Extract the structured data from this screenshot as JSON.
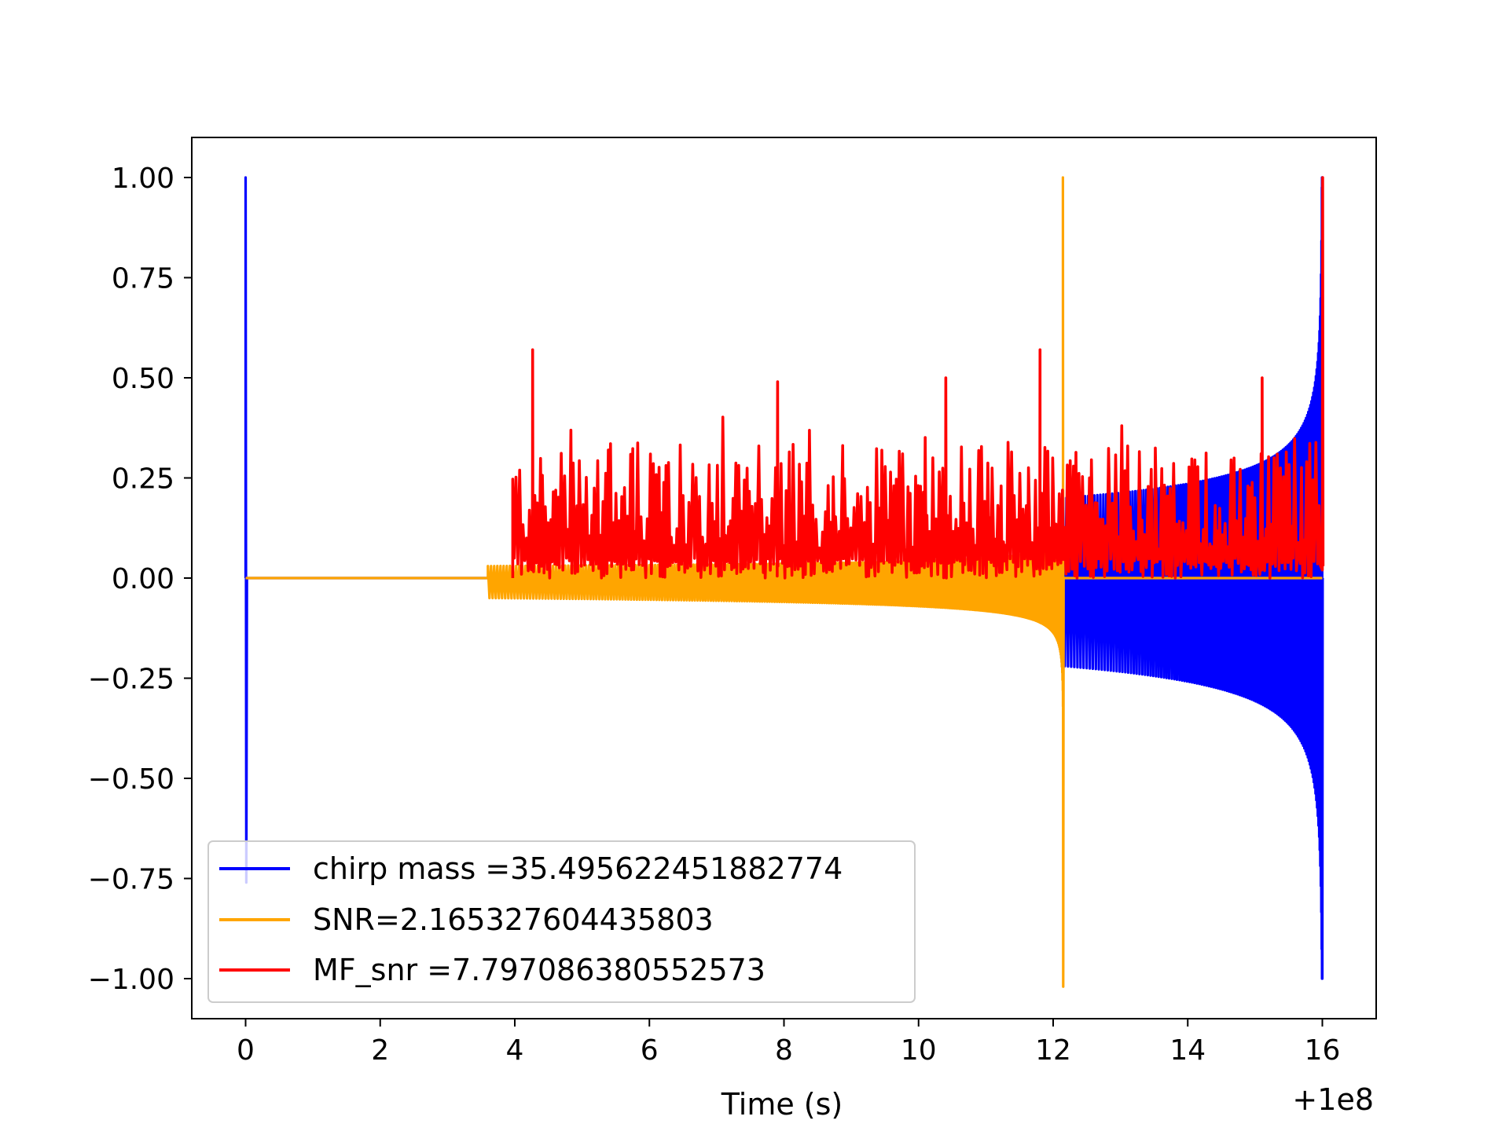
{
  "chart_data": {
    "type": "line",
    "xlabel": "Time (s)",
    "ylabel": "",
    "x_offset_label": "+1e8",
    "xlim": [
      -0.8,
      16.8
    ],
    "ylim": [
      -1.1,
      1.1
    ],
    "xticks": [
      0,
      2,
      4,
      6,
      8,
      10,
      12,
      14,
      16
    ],
    "xtick_labels": [
      "0",
      "2",
      "4",
      "6",
      "8",
      "10",
      "12",
      "14",
      "16"
    ],
    "yticks": [
      1.0,
      0.75,
      0.5,
      0.25,
      0.0,
      -0.25,
      -0.5,
      -0.75,
      -1.0
    ],
    "ytick_labels": [
      "1.00",
      "0.75",
      "0.50",
      "0.25",
      "0.00",
      "−0.25",
      "−0.50",
      "−0.75",
      "−1.00"
    ],
    "grid": false,
    "legend_position": "lower-left",
    "series": [
      {
        "name": "chirp mass =35.495622451882774",
        "color": "#0000ff",
        "description_points": {
          "spike_x": 0.0,
          "spike_ymax": 1.0,
          "spike_ymin": -0.76,
          "chirp_start": 12.15,
          "chirp_end": 16.0,
          "envelope_max_start": 0.2,
          "envelope_min_start": -0.22,
          "envelope_max_end": 1.0,
          "envelope_min_end": -1.0
        }
      },
      {
        "name": "SNR=2.165327604435803",
        "color": "#ffa500",
        "description_points": {
          "chirp_start": 3.6,
          "chirp_end": 12.15,
          "envelope_max_start": 0.03,
          "envelope_min_start": -0.05,
          "envelope_max_end": 1.0,
          "envelope_min_end": -1.02
        }
      },
      {
        "name": "MF_snr =7.797086380552573",
        "color": "#ff0000",
        "description_points": {
          "x_start": 3.97,
          "x_end": 16.0,
          "baseline_min": 0.0,
          "typical_max": 0.32,
          "peaks": [
            [
              4.26,
              0.57
            ],
            [
              11.8,
              0.57
            ],
            [
              7.9,
              0.49
            ],
            [
              10.4,
              0.5
            ],
            [
              15.1,
              0.5
            ],
            [
              16.0,
              1.0
            ]
          ]
        }
      }
    ]
  }
}
